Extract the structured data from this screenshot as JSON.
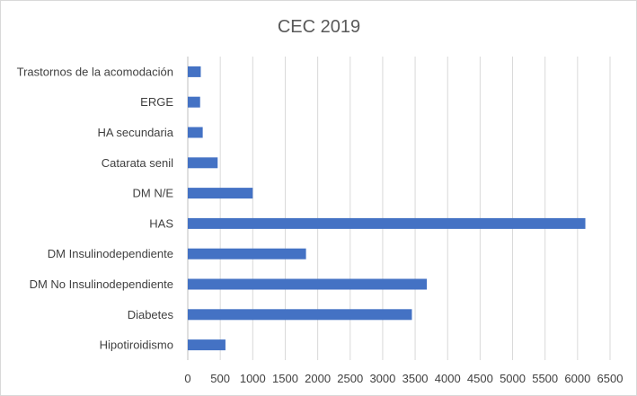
{
  "chart_data": {
    "type": "bar",
    "orientation": "horizontal",
    "title": "CEC 2019",
    "categories": [
      "Hipotiroidismo",
      "Diabetes",
      "DM No Insulinodependiente",
      "DM Insulinodependiente",
      "HAS",
      "DM N/E",
      "Catarata senil",
      "HA secundaria",
      "ERGE",
      "Trastornos de la acomodación"
    ],
    "values": [
      580,
      3450,
      3680,
      1820,
      6120,
      1000,
      460,
      230,
      190,
      200
    ],
    "xlim": [
      0,
      6500
    ],
    "xticks": [
      0,
      500,
      1000,
      1500,
      2000,
      2500,
      3000,
      3500,
      4000,
      4500,
      5000,
      5500,
      6000,
      6500
    ],
    "grid": true,
    "legend": "none",
    "colors": {
      "bar": "#4472C4"
    }
  }
}
